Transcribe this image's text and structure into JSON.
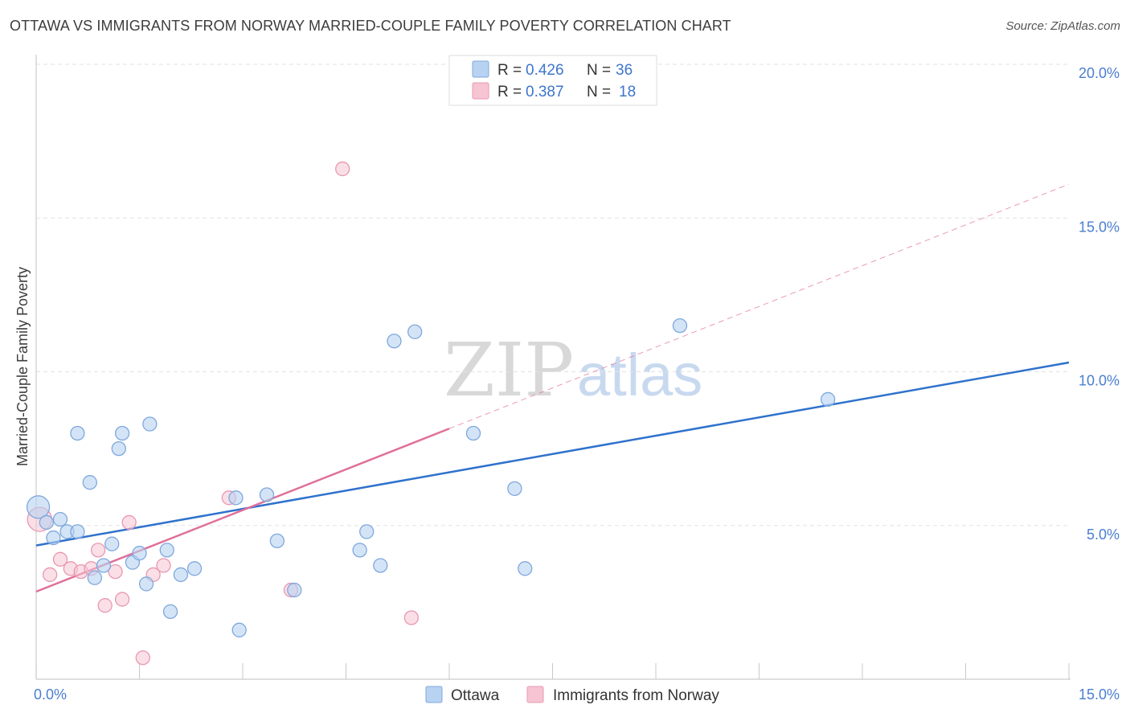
{
  "title": "OTTAWA VS IMMIGRANTS FROM NORWAY MARRIED-COUPLE FAMILY POVERTY CORRELATION CHART",
  "source": "Source: ZipAtlas.com",
  "watermark": {
    "zip": "ZIP",
    "atlas": "atlas"
  },
  "colors": {
    "ottawa_fill": "#b8d2f2",
    "ottawa_stroke": "#7fa8dc",
    "ottawa_line": "#2f72cc",
    "norway_fill": "#f6c4d3",
    "norway_stroke": "#e898b2",
    "norway_line": "#e0709a",
    "grid": "#e2e2e2",
    "axis": "#cccccc"
  },
  "chart_data": {
    "type": "scatter",
    "title": "OTTAWA VS IMMIGRANTS FROM NORWAY MARRIED-COUPLE FAMILY POVERTY CORRELATION CHART",
    "xlabel": "",
    "ylabel": "Married-Couple Family Poverty",
    "xlim": [
      0,
      15
    ],
    "ylim": [
      0,
      20
    ],
    "x_tick_labels": [
      {
        "value": 0,
        "label": "0.0%"
      },
      {
        "value": 15,
        "label": "15.0%"
      }
    ],
    "x_minor_ticks": [
      0,
      1.5,
      3,
      4.5,
      6,
      7.5,
      9,
      10.5,
      12,
      13.5,
      15
    ],
    "y_ticks": [
      {
        "value": 5,
        "label": "5.0%"
      },
      {
        "value": 10,
        "label": "10.0%"
      },
      {
        "value": 15,
        "label": "15.0%"
      },
      {
        "value": 20,
        "label": "20.0%"
      }
    ],
    "legend": {
      "entries": [
        {
          "r_label": "R = ",
          "r_value": "0.426",
          "n_label": "N = ",
          "n_value": "36"
        },
        {
          "r_label": "R = ",
          "r_value": "0.387",
          "n_label": "N = ",
          "n_value": "18"
        }
      ]
    },
    "series": [
      {
        "name": "Ottawa",
        "points": [
          [
            0.03,
            5.6
          ],
          [
            0.15,
            5.1
          ],
          [
            0.25,
            4.6
          ],
          [
            0.35,
            5.2
          ],
          [
            0.45,
            4.8
          ],
          [
            0.6,
            4.8
          ],
          [
            0.6,
            8.0
          ],
          [
            0.78,
            6.4
          ],
          [
            0.85,
            3.3
          ],
          [
            0.98,
            3.7
          ],
          [
            1.1,
            4.4
          ],
          [
            1.2,
            7.5
          ],
          [
            1.25,
            8.0
          ],
          [
            1.4,
            3.8
          ],
          [
            1.5,
            4.1
          ],
          [
            1.6,
            3.1
          ],
          [
            1.65,
            8.3
          ],
          [
            1.9,
            4.2
          ],
          [
            1.95,
            2.2
          ],
          [
            2.1,
            3.4
          ],
          [
            2.3,
            3.6
          ],
          [
            2.9,
            5.9
          ],
          [
            2.95,
            1.6
          ],
          [
            3.35,
            6.0
          ],
          [
            3.5,
            4.5
          ],
          [
            3.75,
            2.9
          ],
          [
            4.7,
            4.2
          ],
          [
            4.8,
            4.8
          ],
          [
            5.0,
            3.7
          ],
          [
            5.2,
            11.0
          ],
          [
            5.5,
            11.3
          ],
          [
            6.35,
            8.0
          ],
          [
            6.95,
            6.2
          ],
          [
            7.1,
            3.6
          ],
          [
            9.35,
            11.5
          ],
          [
            11.5,
            9.1
          ]
        ],
        "trend": {
          "x": [
            0,
            15
          ],
          "y": [
            4.35,
            10.3
          ]
        }
      },
      {
        "name": "Immigrants from Norway",
        "points": [
          [
            0.05,
            5.2
          ],
          [
            0.2,
            3.4
          ],
          [
            0.35,
            3.9
          ],
          [
            0.5,
            3.6
          ],
          [
            0.65,
            3.5
          ],
          [
            0.8,
            3.6
          ],
          [
            0.9,
            4.2
          ],
          [
            1.0,
            2.4
          ],
          [
            1.15,
            3.5
          ],
          [
            1.25,
            2.6
          ],
          [
            1.35,
            5.1
          ],
          [
            1.55,
            0.7
          ],
          [
            1.7,
            3.4
          ],
          [
            1.85,
            3.7
          ],
          [
            2.8,
            5.9
          ],
          [
            3.7,
            2.9
          ],
          [
            4.45,
            16.6
          ],
          [
            5.45,
            2.0
          ]
        ],
        "trend_solid": {
          "x": [
            0,
            6.0
          ],
          "y": [
            2.85,
            8.15
          ]
        },
        "trend_dashed": {
          "x": [
            6.0,
            15
          ],
          "y": [
            8.15,
            16.1
          ]
        }
      }
    ]
  }
}
